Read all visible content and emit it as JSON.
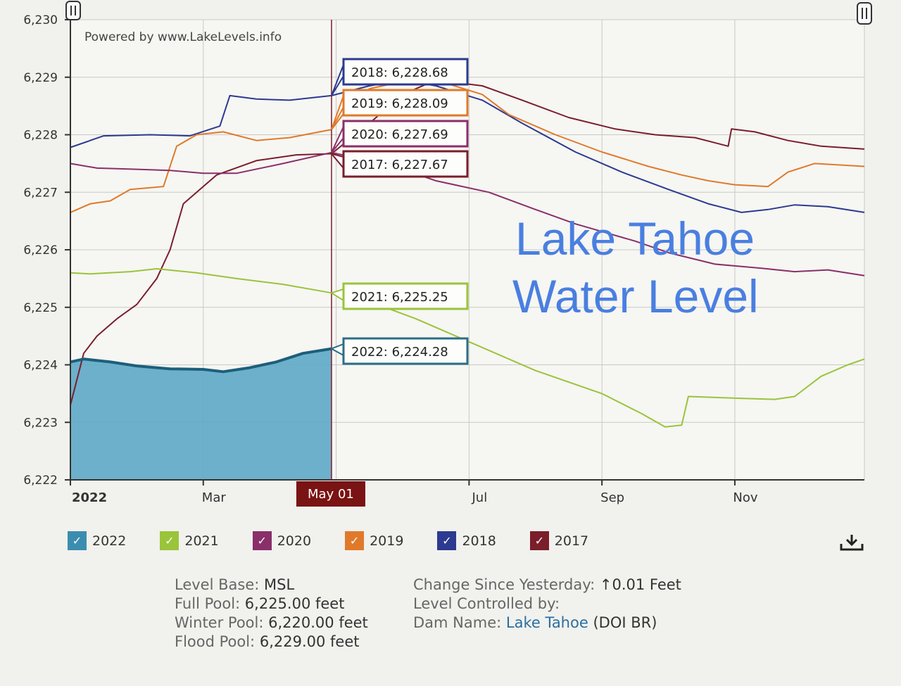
{
  "chart_data": {
    "type": "line",
    "powered_by": "Powered by www.LakeLevels.info",
    "overlay_title": [
      "Lake Tahoe",
      "Water Level"
    ],
    "x_ticks": [
      "2022",
      "Mar",
      "Jul",
      "Sep",
      "Nov"
    ],
    "x_range_month": [
      1,
      12.95
    ],
    "ylim": [
      6222,
      6230
    ],
    "y_ticks": [
      "6,222",
      "6,223",
      "6,224",
      "6,225",
      "6,226",
      "6,227",
      "6,228",
      "6,229",
      "6,230"
    ],
    "crosshair": {
      "label": "May 01",
      "month": 4.93
    },
    "grid": true,
    "series": [
      {
        "name": "2022",
        "color": "#3b8db0",
        "area": true,
        "points": [
          [
            1,
            6224.05
          ],
          [
            1.2,
            6224.1
          ],
          [
            1.6,
            6224.05
          ],
          [
            2,
            6223.98
          ],
          [
            2.5,
            6223.93
          ],
          [
            3,
            6223.92
          ],
          [
            3.3,
            6223.88
          ],
          [
            3.7,
            6223.95
          ],
          [
            4.1,
            6224.05
          ],
          [
            4.5,
            6224.2
          ],
          [
            4.93,
            6224.28
          ]
        ]
      },
      {
        "name": "2021",
        "color": "#9ac43a",
        "points": [
          [
            1,
            6225.6
          ],
          [
            1.3,
            6225.58
          ],
          [
            1.9,
            6225.62
          ],
          [
            2.3,
            6225.67
          ],
          [
            2.9,
            6225.6
          ],
          [
            3.5,
            6225.5
          ],
          [
            4.2,
            6225.4
          ],
          [
            4.93,
            6225.25
          ],
          [
            5.5,
            6225.1
          ],
          [
            6.2,
            6224.8
          ],
          [
            7,
            6224.4
          ],
          [
            8,
            6223.9
          ],
          [
            9,
            6223.5
          ],
          [
            9.6,
            6223.15
          ],
          [
            9.95,
            6222.92
          ],
          [
            10.2,
            6222.95
          ],
          [
            10.3,
            6223.45
          ],
          [
            11,
            6223.42
          ],
          [
            11.6,
            6223.4
          ],
          [
            11.9,
            6223.45
          ],
          [
            12.3,
            6223.8
          ],
          [
            12.7,
            6224.0
          ],
          [
            12.95,
            6224.1
          ]
        ]
      },
      {
        "name": "2020",
        "color": "#8a2f6a",
        "points": [
          [
            1,
            6227.5
          ],
          [
            1.4,
            6227.42
          ],
          [
            2,
            6227.4
          ],
          [
            2.5,
            6227.38
          ],
          [
            3,
            6227.33
          ],
          [
            3.5,
            6227.33
          ],
          [
            4.2,
            6227.5
          ],
          [
            4.93,
            6227.69
          ],
          [
            5.5,
            6227.55
          ],
          [
            6,
            6227.4
          ],
          [
            6.5,
            6227.2
          ],
          [
            7.3,
            6227.0
          ],
          [
            8,
            6226.7
          ],
          [
            8.6,
            6226.45
          ],
          [
            9.5,
            6226.15
          ],
          [
            10,
            6225.95
          ],
          [
            10.7,
            6225.75
          ],
          [
            11.4,
            6225.68
          ],
          [
            11.9,
            6225.62
          ],
          [
            12.4,
            6225.65
          ],
          [
            12.95,
            6225.55
          ]
        ]
      },
      {
        "name": "2019",
        "color": "#e07a2a",
        "points": [
          [
            1,
            6226.65
          ],
          [
            1.3,
            6226.8
          ],
          [
            1.6,
            6226.85
          ],
          [
            1.9,
            6227.05
          ],
          [
            2.4,
            6227.1
          ],
          [
            2.6,
            6227.8
          ],
          [
            2.9,
            6228.0
          ],
          [
            3.3,
            6228.05
          ],
          [
            3.8,
            6227.9
          ],
          [
            4.3,
            6227.95
          ],
          [
            4.93,
            6228.09
          ],
          [
            5.2,
            6228.5
          ],
          [
            5.5,
            6228.8
          ],
          [
            6.1,
            6228.95
          ],
          [
            6.5,
            6228.95
          ],
          [
            7.2,
            6228.7
          ],
          [
            7.6,
            6228.35
          ],
          [
            8.3,
            6228.0
          ],
          [
            9,
            6227.7
          ],
          [
            9.7,
            6227.45
          ],
          [
            10.2,
            6227.3
          ],
          [
            10.6,
            6227.2
          ],
          [
            11,
            6227.13
          ],
          [
            11.5,
            6227.1
          ],
          [
            11.8,
            6227.35
          ],
          [
            12.2,
            6227.5
          ],
          [
            12.95,
            6227.45
          ]
        ]
      },
      {
        "name": "2018",
        "color": "#2c3a8f",
        "points": [
          [
            1,
            6227.78
          ],
          [
            1.5,
            6227.98
          ],
          [
            2.2,
            6228.0
          ],
          [
            2.8,
            6227.98
          ],
          [
            3.25,
            6228.15
          ],
          [
            3.4,
            6228.68
          ],
          [
            3.8,
            6228.62
          ],
          [
            4.3,
            6228.6
          ],
          [
            4.93,
            6228.68
          ],
          [
            5.5,
            6228.85
          ],
          [
            6,
            6228.95
          ],
          [
            6.5,
            6228.85
          ],
          [
            7.2,
            6228.6
          ],
          [
            7.8,
            6228.2
          ],
          [
            8.6,
            6227.7
          ],
          [
            9.3,
            6227.35
          ],
          [
            10,
            6227.05
          ],
          [
            10.6,
            6226.8
          ],
          [
            11.1,
            6226.65
          ],
          [
            11.5,
            6226.7
          ],
          [
            11.9,
            6226.78
          ],
          [
            12.4,
            6226.75
          ],
          [
            12.95,
            6226.65
          ]
        ]
      },
      {
        "name": "2017",
        "color": "#7a1e2a",
        "points": [
          [
            1,
            6223.3
          ],
          [
            1.2,
            6224.2
          ],
          [
            1.4,
            6224.5
          ],
          [
            1.7,
            6224.8
          ],
          [
            2,
            6225.05
          ],
          [
            2.3,
            6225.5
          ],
          [
            2.5,
            6226.0
          ],
          [
            2.7,
            6226.8
          ],
          [
            3.2,
            6227.3
          ],
          [
            3.8,
            6227.55
          ],
          [
            4.4,
            6227.65
          ],
          [
            4.93,
            6227.67
          ],
          [
            5.5,
            6228.2
          ],
          [
            6,
            6228.7
          ],
          [
            6.5,
            6228.95
          ],
          [
            7.2,
            6228.85
          ],
          [
            7.8,
            6228.6
          ],
          [
            8.5,
            6228.3
          ],
          [
            9.2,
            6228.1
          ],
          [
            9.8,
            6228.0
          ],
          [
            10.4,
            6227.95
          ],
          [
            10.9,
            6227.8
          ],
          [
            10.95,
            6228.1
          ],
          [
            11.3,
            6228.05
          ],
          [
            11.8,
            6227.9
          ],
          [
            12.3,
            6227.8
          ],
          [
            12.95,
            6227.75
          ]
        ]
      }
    ],
    "tooltips": [
      {
        "label": "2018: 6,228.68",
        "color": "#2c3a8f",
        "series": "2018"
      },
      {
        "label": "2019: 6,228.09",
        "color": "#e07a2a",
        "series": "2019"
      },
      {
        "label": "2020: 6,227.69",
        "color": "#8a2f6a",
        "series": "2020"
      },
      {
        "label": "2017: 6,227.67",
        "color": "#7a1e2a",
        "series": "2017"
      },
      {
        "label": "2021: 6,225.25",
        "color": "#9ac43a",
        "series": "2021"
      },
      {
        "label": "2022: 6,224.28",
        "color": "#2b6e86",
        "series": "2022"
      }
    ]
  },
  "legend": [
    {
      "label": "2022",
      "color": "#3b8db0"
    },
    {
      "label": "2021",
      "color": "#9ac43a"
    },
    {
      "label": "2020",
      "color": "#8a2f6a"
    },
    {
      "label": "2019",
      "color": "#e07a2a"
    },
    {
      "label": "2018",
      "color": "#2c3a8f"
    },
    {
      "label": "2017",
      "color": "#7a1e2a"
    }
  ],
  "download_icon": "download-icon",
  "info": {
    "level_base_label": "Level Base:",
    "level_base_value": "MSL",
    "full_pool_label": "Full Pool:",
    "full_pool_value": "6,225.00 feet",
    "winter_pool_label": "Winter Pool:",
    "winter_pool_value": "6,220.00 feet",
    "flood_pool_label": "Flood Pool:",
    "flood_pool_value": "6,229.00 feet",
    "change_label": "Change Since Yesterday:",
    "change_value": "↑0.01 Feet",
    "controlled_label": "Level Controlled by:",
    "dam_label": "Dam Name:",
    "dam_link": "Lake Tahoe",
    "dam_suffix": "(DOI BR)"
  }
}
